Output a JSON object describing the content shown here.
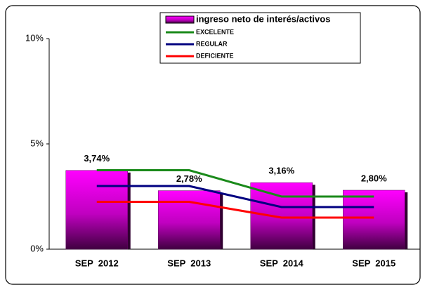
{
  "chart_data": {
    "type": "bar",
    "categories": [
      "SEP  2012",
      "SEP  2013",
      "SEP  2014",
      "SEP  2015"
    ],
    "series": [
      {
        "name": "ingreso neto de interés/activos",
        "type": "bar",
        "color": "#ff00ff",
        "values": [
          3.74,
          2.78,
          3.16,
          2.8
        ],
        "value_labels": [
          "3,74%",
          "2,78%",
          "3,16%",
          "2,80%"
        ]
      },
      {
        "name": "EXCELENTE",
        "type": "line",
        "color": "#1a8a1a",
        "values": [
          3.75,
          3.75,
          2.5,
          2.5
        ]
      },
      {
        "name": "REGULAR",
        "type": "line",
        "color": "#000080",
        "values": [
          3,
          3,
          2,
          2
        ]
      },
      {
        "name": "DEFICIENTE",
        "type": "line",
        "color": "#ff0000",
        "values": [
          2.25,
          2.25,
          1.5,
          1.5
        ]
      }
    ],
    "ylim": [
      0,
      10
    ],
    "yticks": [
      {
        "value": 0,
        "label": "0%"
      },
      {
        "value": 5,
        "label": "5%"
      },
      {
        "value": 10,
        "label": "10%"
      }
    ],
    "grid": false
  }
}
